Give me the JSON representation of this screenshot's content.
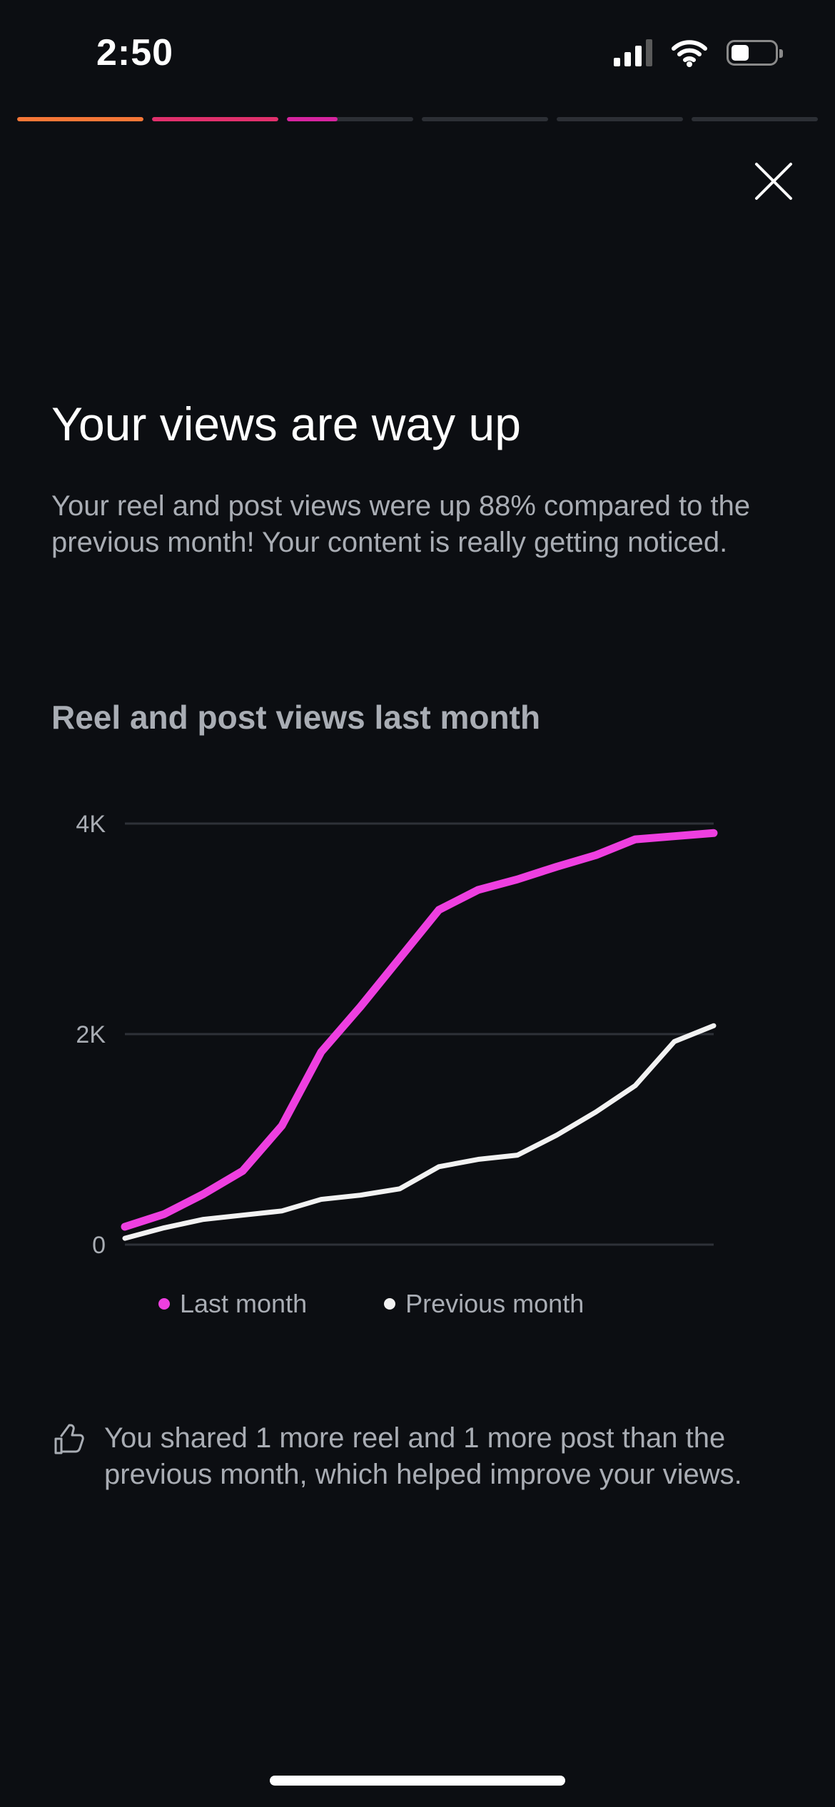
{
  "status_bar": {
    "time": "2:50",
    "battery_level": 0.4
  },
  "story_progress": {
    "segments": [
      {
        "progress": 1.0,
        "color": "#f77737"
      },
      {
        "progress": 1.0,
        "color": "#e1306c"
      },
      {
        "progress": 0.4,
        "color": "#d6249f"
      },
      {
        "progress": 0,
        "color": "#2c2f35"
      },
      {
        "progress": 0,
        "color": "#2c2f35"
      },
      {
        "progress": 0,
        "color": "#2c2f35"
      }
    ]
  },
  "close_icon": "close-icon",
  "headline": "Your views are way up",
  "description": "Your reel and post views were up 88% compared to the previous month! Your content is really getting noticed.",
  "chart_title": "Reel and post views last month",
  "chart_data": {
    "type": "line",
    "title": "Reel and post views last month",
    "ylim": [
      0,
      4000
    ],
    "yticks": [
      {
        "value": 0,
        "label": "0"
      },
      {
        "value": 2000,
        "label": "2K"
      },
      {
        "value": 4000,
        "label": "4K"
      }
    ],
    "grid": true,
    "legend_position": "bottom",
    "x": [
      1,
      2,
      3,
      4,
      5,
      6,
      7,
      8,
      9,
      10,
      11,
      12,
      13,
      14,
      15,
      16
    ],
    "series": [
      {
        "name": "Last month",
        "color": "#ee3fe0",
        "values": [
          170,
          290,
          480,
          700,
          1130,
          1830,
          2260,
          2720,
          3180,
          3370,
          3470,
          3590,
          3700,
          3850,
          3880,
          3910
        ]
      },
      {
        "name": "Previous month",
        "color": "#f2f2f2",
        "values": [
          60,
          160,
          240,
          280,
          320,
          430,
          470,
          530,
          740,
          810,
          850,
          1040,
          1260,
          1510,
          1930,
          2080
        ]
      }
    ]
  },
  "tip": {
    "icon": "thumbs-up-icon",
    "text": "You shared 1 more reel and 1 more post than the previous month, which helped improve your views."
  }
}
